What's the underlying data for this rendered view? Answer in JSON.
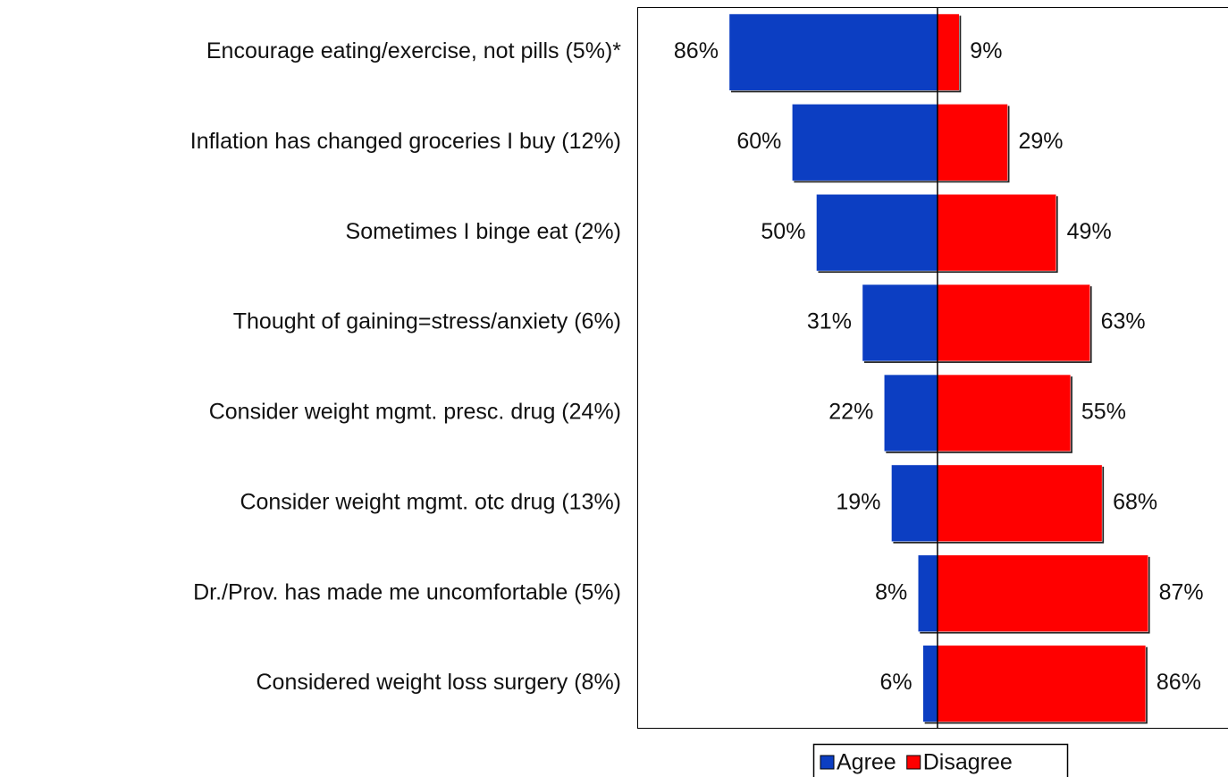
{
  "chart_data": {
    "type": "diverging_bar",
    "categories": [
      "Encourage eating/exercise, not pills (5%)*",
      "Inflation has changed groceries I buy (12%)",
      "Sometimes I binge eat (2%)",
      "Thought of gaining=stress/anxiety (6%)",
      "Consider weight mgmt. presc. drug (24%)",
      "Consider weight mgmt. otc drug (13%)",
      "Dr./Prov. has made me uncomfortable (5%)",
      "Considered weight loss surgery (8%)"
    ],
    "series": [
      {
        "name": "Agree",
        "color": "#0c3ec2",
        "direction": "left",
        "values": [
          86,
          60,
          50,
          31,
          22,
          19,
          8,
          6
        ],
        "value_labels": [
          "86%",
          "60%",
          "50%",
          "31%",
          "22%",
          "19%",
          "8%",
          "6%"
        ]
      },
      {
        "name": "Disagree",
        "color": "#ff0000",
        "direction": "right",
        "values": [
          9,
          29,
          49,
          63,
          55,
          68,
          87,
          86
        ],
        "value_labels": [
          "9%",
          "29%",
          "49%",
          "63%",
          "55%",
          "68%",
          "87%",
          "86%"
        ]
      }
    ],
    "xlim": [
      -124,
      120
    ],
    "legend": "bottom"
  }
}
